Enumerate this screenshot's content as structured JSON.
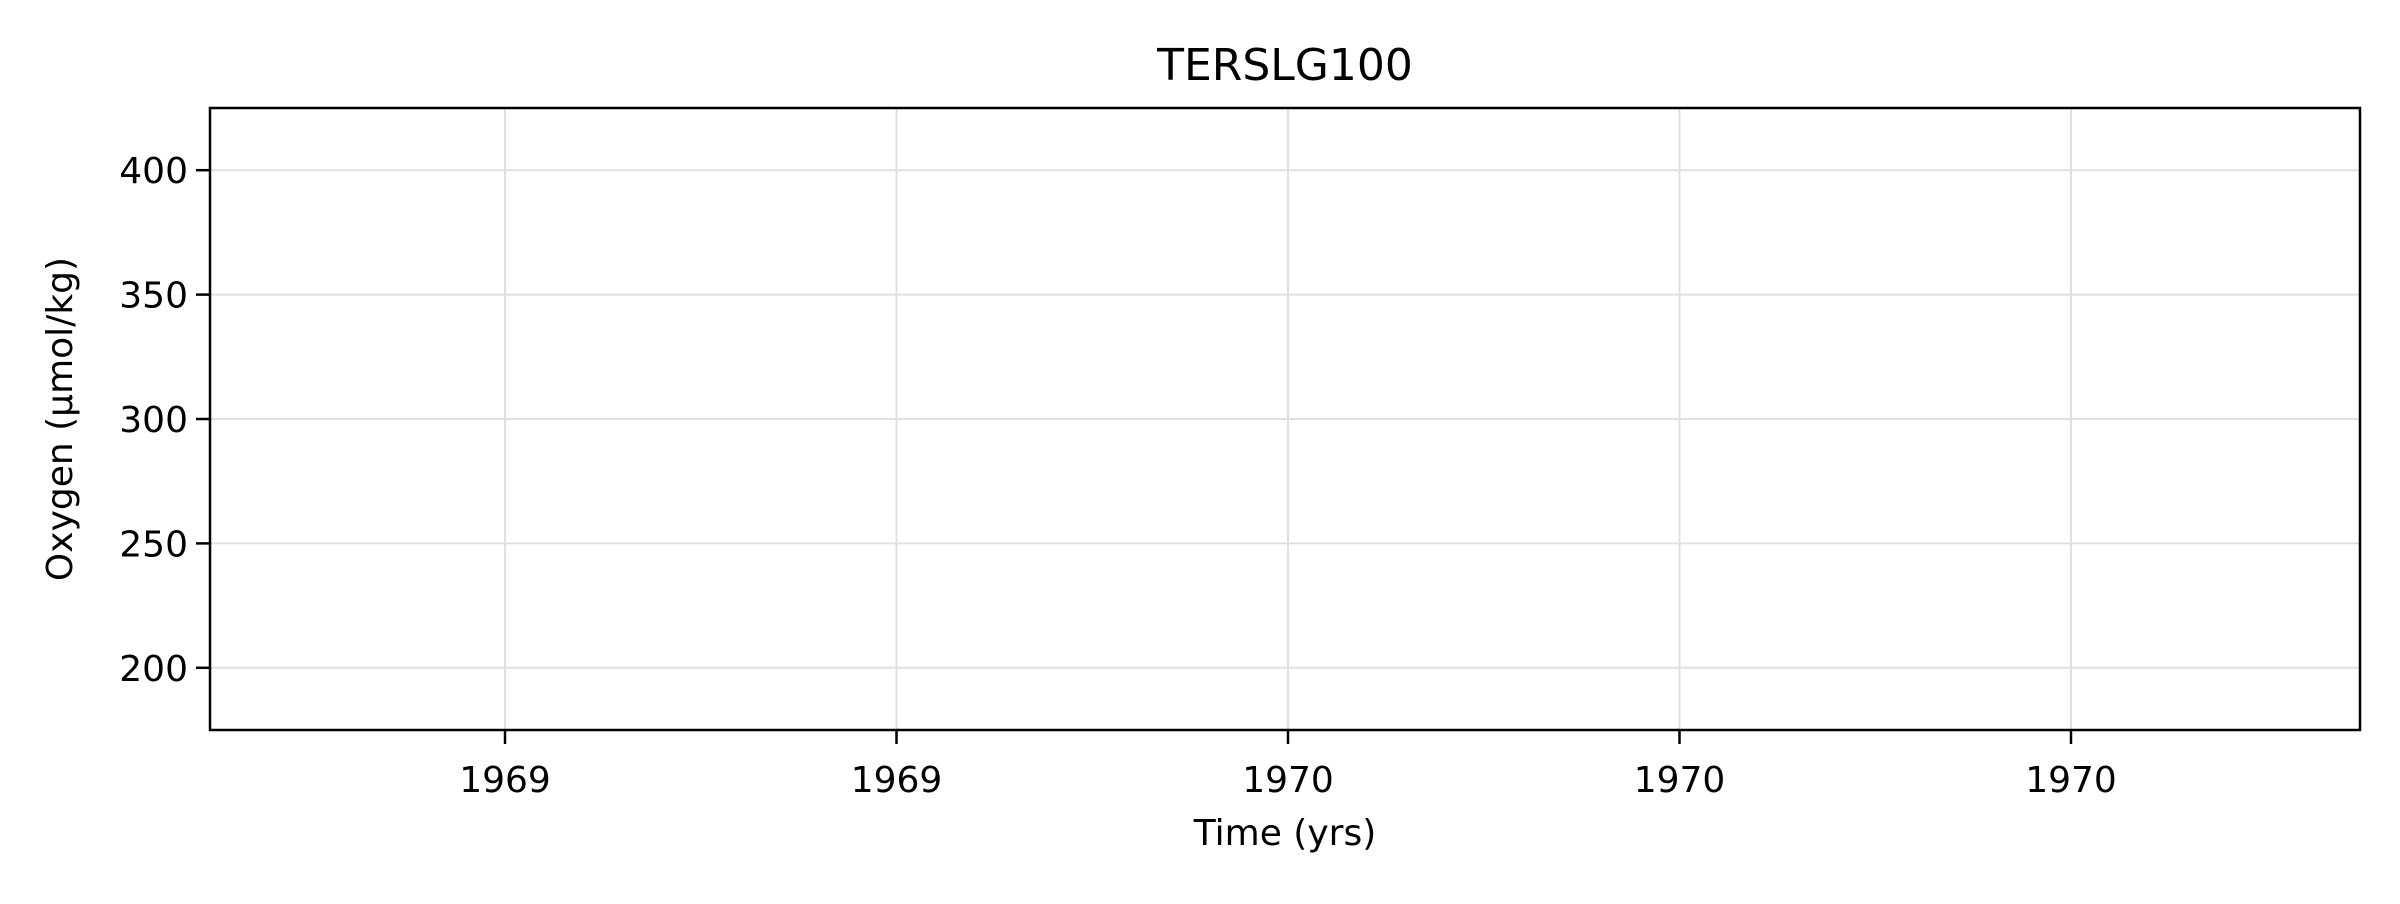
{
  "chart_data": {
    "type": "line",
    "title": "TERSLG100",
    "xlabel": "Time (yrs)",
    "ylabel": "Oxygen (µmol/kg)",
    "x_tick_labels": [
      "1969",
      "1969",
      "1970",
      "1970",
      "1970"
    ],
    "y_ticks": [
      200,
      250,
      300,
      350,
      400
    ],
    "y_tick_labels": [
      "200",
      "250",
      "300",
      "350",
      "400"
    ],
    "ylim": [
      175,
      425
    ],
    "grid": true,
    "series": []
  },
  "colors": {
    "grid": "#e0e0e0",
    "axes": "#000000",
    "background": "#ffffff"
  }
}
